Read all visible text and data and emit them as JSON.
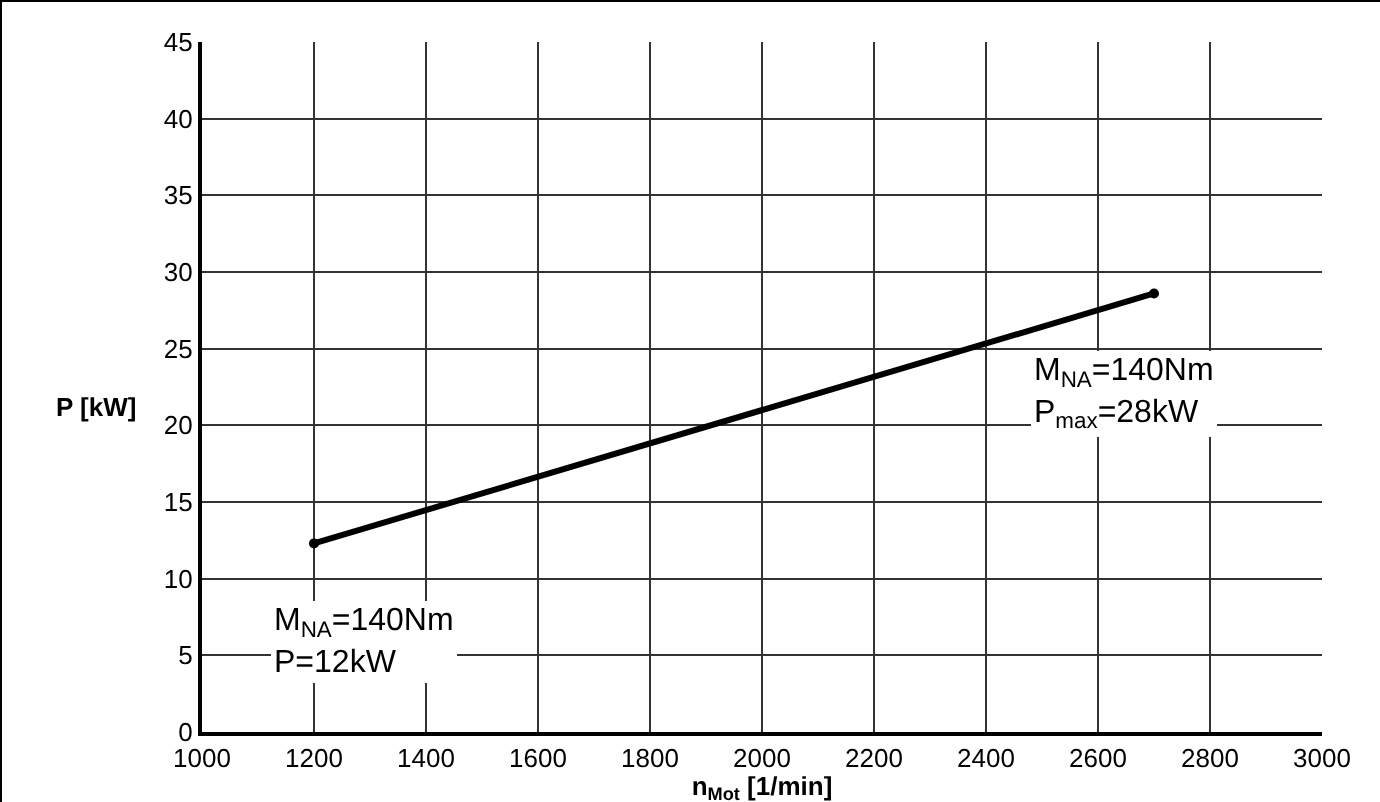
{
  "chart_data": {
    "type": "line",
    "xlabel": "n$_{Mot}$ [1/min]",
    "ylabel": "P [kW]",
    "x": [
      1200,
      2700
    ],
    "series": [
      {
        "color": "#000000",
        "values": [
          12.3,
          28.6
        ]
      }
    ],
    "xlim": [
      1000,
      3000
    ],
    "xticks": [
      1000,
      1200,
      1400,
      1600,
      1800,
      2000,
      2200,
      2400,
      2600,
      2800,
      3000
    ],
    "ylim": [
      0,
      45
    ],
    "yticks": [
      0,
      5,
      10,
      15,
      20,
      25,
      30,
      35,
      40,
      45
    ],
    "grid": true,
    "marker": "circle",
    "line_style": "solid",
    "annotations": [
      {
        "text": "M$_{NA}$=140Nm\nP=12kW",
        "x": 1200,
        "y": 12.3
      },
      {
        "text": "M$_{NA}$=140Nm\nP$_{max}$=28kW",
        "x": 2700,
        "y": 28.6
      }
    ]
  }
}
